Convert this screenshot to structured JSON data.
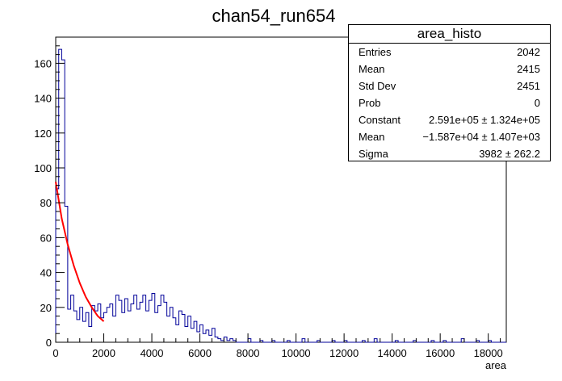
{
  "chart_data": {
    "type": "histogram",
    "title": "chan54_run654",
    "xlabel": "area",
    "ylabel": "",
    "xlim": [
      0,
      18750
    ],
    "ylim": [
      0,
      175
    ],
    "bin_width": 125,
    "x_ticks": [
      0,
      2000,
      4000,
      6000,
      8000,
      10000,
      12000,
      14000,
      16000,
      18000
    ],
    "y_ticks": [
      0,
      20,
      40,
      60,
      80,
      100,
      120,
      140,
      160
    ],
    "bins_start": 0,
    "counts": [
      88,
      168,
      162,
      78,
      19,
      27,
      18,
      13,
      20,
      12,
      17,
      9,
      21,
      18,
      22,
      14,
      17,
      20,
      22,
      15,
      27,
      24,
      17,
      25,
      18,
      22,
      27,
      19,
      23,
      27,
      18,
      24,
      28,
      17,
      21,
      27,
      23,
      15,
      20,
      14,
      10,
      18,
      16,
      9,
      15,
      8,
      12,
      6,
      10,
      5,
      7,
      4,
      8,
      3,
      2,
      1,
      3,
      1,
      2,
      1
    ],
    "sparse_bins": [
      [
        8000,
        2
      ],
      [
        8500,
        1
      ],
      [
        9000,
        1
      ],
      [
        9625,
        1
      ],
      [
        10250,
        2
      ],
      [
        10875,
        1
      ],
      [
        11500,
        1
      ],
      [
        12000,
        1
      ],
      [
        12750,
        1
      ],
      [
        13250,
        2
      ],
      [
        14125,
        1
      ],
      [
        14875,
        1
      ],
      [
        15625,
        1
      ],
      [
        16125,
        1
      ],
      [
        16875,
        2
      ],
      [
        17500,
        1
      ],
      [
        18000,
        1
      ]
    ],
    "fit": {
      "function": "expo",
      "color": "#ff0000",
      "x_range": [
        0,
        2000
      ],
      "points": [
        [
          0,
          92
        ],
        [
          250,
          71
        ],
        [
          500,
          56
        ],
        [
          750,
          44
        ],
        [
          1000,
          34
        ],
        [
          1250,
          26
        ],
        [
          1500,
          20
        ],
        [
          1750,
          15
        ],
        [
          2000,
          12
        ]
      ]
    },
    "histogram_color": "#000099",
    "grid": false
  },
  "stats": {
    "title": "area_histo",
    "rows": [
      {
        "label": "Entries",
        "value": "2042"
      },
      {
        "label": "Mean",
        "value": "2415"
      },
      {
        "label": "Std Dev",
        "value": "2451"
      },
      {
        "label": "Prob",
        "value": "0"
      },
      {
        "label": "Constant",
        "value": "2.591e+05 ± 1.324e+05"
      },
      {
        "label": "Mean",
        "value": "−1.587e+04 ± 1.407e+03"
      },
      {
        "label": "Sigma",
        "value": "3982 ± 262.2"
      }
    ]
  }
}
